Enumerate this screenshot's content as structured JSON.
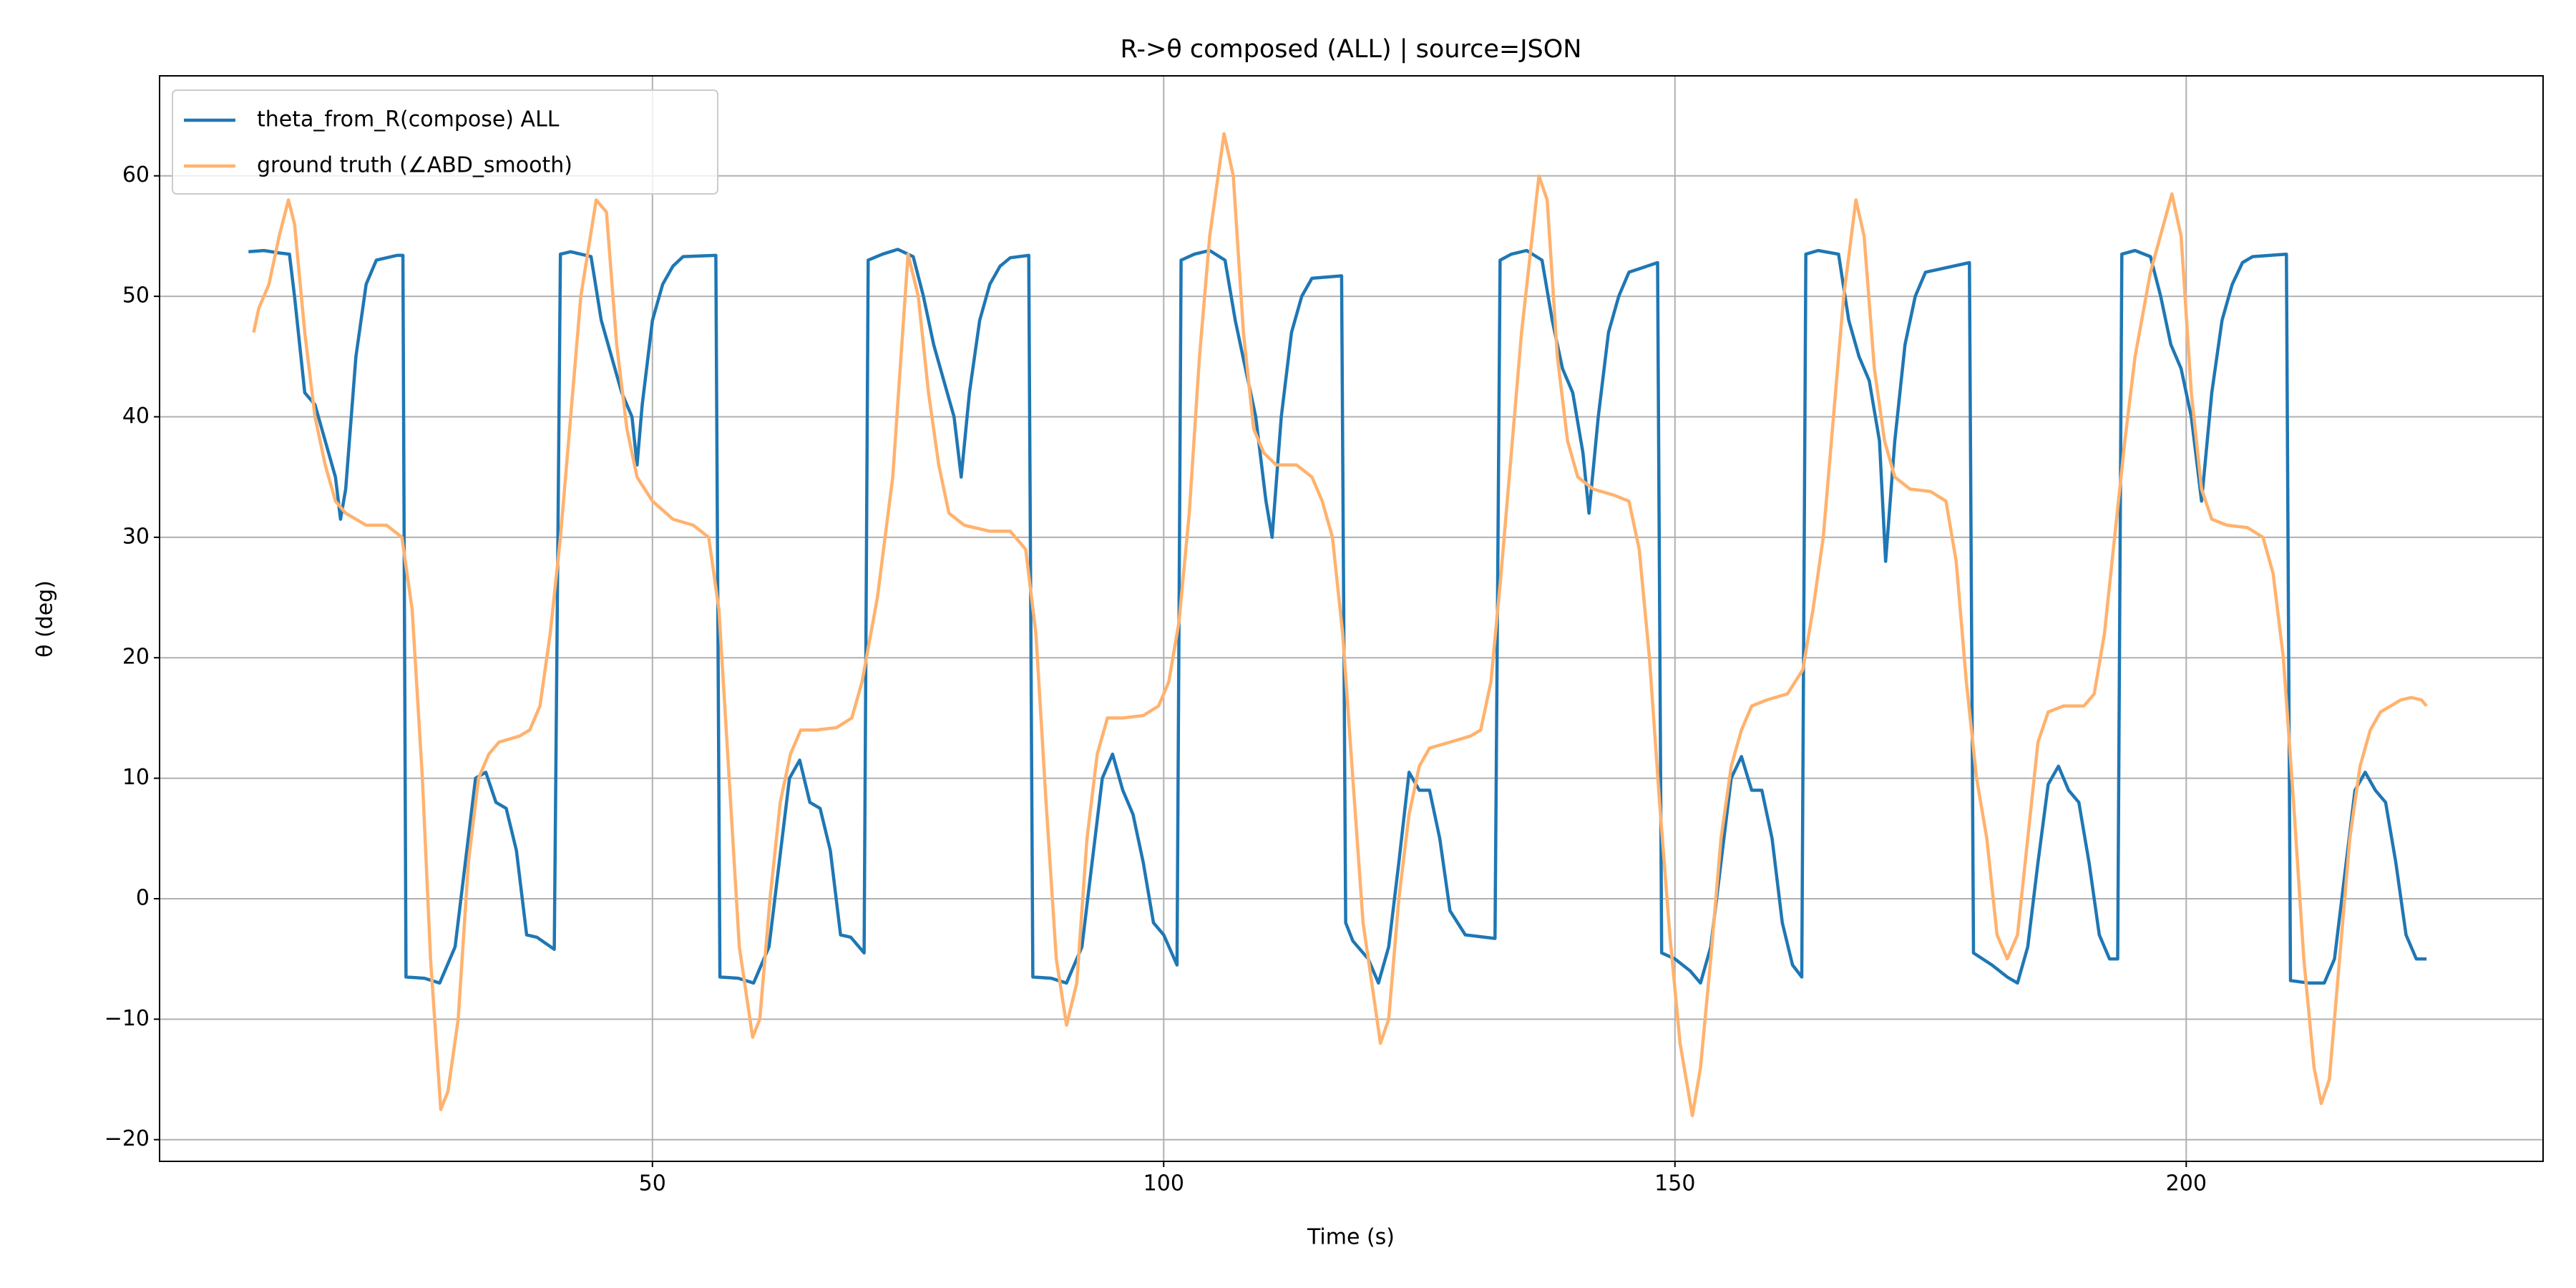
{
  "chart_data": {
    "type": "line",
    "title": "R->θ composed (ALL) | source=JSON",
    "x_label": "Time (s)",
    "y_label": "θ (deg)",
    "xlim": [
      1.8,
      234.9
    ],
    "ylim": [
      -21.8,
      68.3
    ],
    "xticks": [
      50,
      100,
      150,
      200
    ],
    "yticks": [
      {
        "value": -20,
        "label": "−20"
      },
      {
        "value": -10,
        "label": "−10"
      },
      0,
      10,
      20,
      30,
      40,
      50,
      60
    ],
    "grid": true,
    "legend": "upper left",
    "series": [
      {
        "name": "theta_from_R(compose) ALL",
        "color": "#1f77b4",
        "x": [
          10.5,
          12,
          13.5,
          14.5,
          15,
          16,
          17,
          18,
          19,
          19.5,
          20,
          21,
          22,
          23,
          25,
          25.6,
          25.9,
          27.7,
          29.2,
          30.7,
          31.7,
          32.7,
          33.7,
          34.7,
          35.7,
          36.7,
          37.7,
          38.7,
          40.4,
          41,
          42,
          44,
          45,
          46,
          47,
          48,
          48.5,
          49,
          50,
          51,
          52,
          53,
          56.2,
          56.6,
          58.4,
          59.9,
          61.4,
          62.4,
          63.4,
          64.4,
          65.4,
          66.4,
          67.4,
          68.4,
          69.4,
          70.7,
          71.1,
          72.5,
          74,
          75.5,
          76.5,
          77.5,
          78.5,
          79.5,
          80.2,
          81,
          82,
          83,
          84,
          85,
          86.8,
          87.2,
          89,
          90.5,
          92,
          93,
          94,
          95,
          96,
          97,
          98,
          99,
          100,
          101.3,
          101.7,
          103,
          104.5,
          106,
          107,
          108,
          109,
          110,
          110.6,
          111.5,
          112.5,
          113.5,
          114.5,
          117.4,
          117.8,
          118.5,
          120,
          121,
          122,
          123,
          124,
          125,
          126,
          127,
          128,
          129.5,
          132.4,
          132.9,
          134,
          135.5,
          137,
          138,
          139,
          140,
          141,
          141.6,
          142.5,
          143.5,
          144.5,
          145.5,
          148.3,
          148.7,
          150,
          151.5,
          152.5,
          153.5,
          154.5,
          155.5,
          156.5,
          157.5,
          158.5,
          159.5,
          160.5,
          161.5,
          162.4,
          162.8,
          164,
          166,
          167,
          168,
          169,
          170,
          170.6,
          171.5,
          172.5,
          173.5,
          174.5,
          178.8,
          179.2,
          181,
          182.5,
          183.5,
          184.5,
          185.5,
          186.5,
          187.5,
          188.5,
          189.5,
          190.5,
          191.5,
          192.5,
          193.3,
          193.7,
          195,
          196.5,
          197.5,
          198.5,
          199.5,
          200.5,
          201.5,
          202.5,
          203.5,
          204.5,
          205.5,
          206.5,
          209.8,
          210.2,
          212,
          213.5,
          214.5,
          215.5,
          216.5,
          217.5,
          218.5,
          219.5,
          220.5,
          221.5,
          222.5,
          223.5
        ],
        "values": [
          53.7,
          53.8,
          53.6,
          53.5,
          50,
          42,
          41,
          38,
          35,
          31.5,
          34,
          45,
          51,
          53,
          53.4,
          53.4,
          -6.5,
          -6.6,
          -7,
          -4,
          3,
          10,
          10.5,
          8,
          7.5,
          4,
          -3,
          -3.2,
          -4.2,
          53.5,
          53.7,
          53.3,
          48,
          45,
          42,
          40,
          36,
          41,
          48,
          51,
          52.5,
          53.3,
          53.4,
          -6.5,
          -6.6,
          -7,
          -4,
          3,
          10,
          11.5,
          8,
          7.5,
          4,
          -3,
          -3.2,
          -4.5,
          53,
          53.5,
          53.9,
          53.3,
          50,
          46,
          43,
          40,
          35,
          42,
          48,
          51,
          52.5,
          53.2,
          53.4,
          -6.5,
          -6.6,
          -7,
          -4,
          3,
          10,
          12,
          9,
          7,
          3,
          -2,
          -3,
          -5.5,
          53,
          53.5,
          53.8,
          53,
          48,
          44,
          40,
          33,
          30,
          40,
          47,
          50,
          51.5,
          51.7,
          -2,
          -3.5,
          -5,
          -7,
          -4,
          3,
          10.5,
          9,
          9,
          5,
          -1,
          -3,
          -3.3,
          53,
          53.5,
          53.8,
          53,
          48,
          44,
          42,
          37,
          32,
          40,
          47,
          50,
          52,
          52.8,
          -4.5,
          -5,
          -6,
          -7,
          -4,
          3,
          10,
          11.8,
          9,
          9,
          5,
          -2,
          -5.5,
          -6.5,
          53.5,
          53.8,
          53.5,
          48,
          45,
          43,
          38,
          28,
          38,
          46,
          50,
          52,
          52.8,
          -4.5,
          -5.5,
          -6.5,
          -7,
          -4,
          3,
          9.5,
          11,
          9,
          8,
          3,
          -3,
          -5,
          -5,
          53.5,
          53.8,
          53.3,
          50,
          46,
          44,
          40,
          33,
          42,
          48,
          51,
          52.8,
          53.3,
          53.5,
          -6.8,
          -7,
          -7,
          -5,
          2,
          9,
          10.5,
          9,
          8,
          3,
          -3,
          -5,
          -5
        ]
      },
      {
        "name": "ground truth (∠ABD_smooth)",
        "color": "#ffb26e",
        "x": [
          11,
          11.5,
          12.5,
          13.5,
          14.4,
          15,
          16,
          17,
          18,
          19,
          20,
          22,
          24,
          25.5,
          26.5,
          27.5,
          28.3,
          29.3,
          30,
          31,
          32,
          33,
          34,
          35,
          37,
          38,
          39,
          40,
          41,
          42,
          43,
          44.5,
          45.5,
          46.5,
          47.5,
          48.5,
          50,
          52,
          54,
          55.5,
          56.5,
          57.5,
          58.5,
          59.8,
          60.5,
          61.5,
          62.5,
          63.5,
          64.5,
          66,
          68,
          69.5,
          70.5,
          72,
          73.5,
          75,
          76,
          77,
          78,
          79,
          80.5,
          83,
          85,
          86.5,
          87.5,
          88.5,
          89.5,
          90.5,
          91.5,
          92.5,
          93.5,
          94.5,
          96,
          98,
          99.5,
          100.5,
          101.5,
          102.5,
          103.5,
          104.5,
          105.9,
          106.8,
          107.8,
          108.8,
          109.8,
          111,
          113,
          114.5,
          115.5,
          116.5,
          117.5,
          118.5,
          119.5,
          121.2,
          122,
          123,
          124,
          125,
          126,
          128,
          130,
          131,
          132,
          133,
          134,
          135,
          136.7,
          137.5,
          138.5,
          139.5,
          140.5,
          142,
          144,
          145.5,
          146.5,
          147.5,
          148.5,
          149.5,
          150.5,
          151.7,
          152.5,
          153.5,
          154.5,
          155.5,
          156.5,
          157.5,
          159,
          161,
          162.5,
          163.5,
          164.5,
          165.5,
          166.5,
          167.7,
          168.5,
          169.5,
          170.5,
          171.5,
          173,
          175,
          176.5,
          177.5,
          178.5,
          179.5,
          180.5,
          181.5,
          182.5,
          183.5,
          184.5,
          185.5,
          186.5,
          188,
          190,
          191,
          192,
          193,
          194,
          195,
          196.5,
          198.6,
          199.5,
          200.5,
          201.5,
          202.5,
          204,
          206,
          207.5,
          208.5,
          209.5,
          210.5,
          211.5,
          212.5,
          213.2,
          214,
          215,
          216,
          217,
          218,
          219,
          220,
          221,
          222,
          223,
          223.5
        ],
        "values": [
          47,
          49,
          51,
          55,
          58,
          56,
          47,
          40,
          36,
          33,
          32,
          31,
          31,
          30,
          24,
          10,
          -5,
          -17.5,
          -16,
          -10,
          3,
          10,
          12,
          13,
          13.5,
          14,
          16,
          22,
          30,
          40,
          50,
          58,
          57,
          46,
          39,
          35,
          33,
          31.5,
          31,
          30,
          24,
          10,
          -4,
          -11.5,
          -10,
          0,
          8,
          12,
          14,
          14,
          14.2,
          15,
          18,
          25,
          35,
          53.5,
          50,
          42,
          36,
          32,
          31,
          30.5,
          30.5,
          29,
          22,
          8,
          -5,
          -10.5,
          -7,
          5,
          12,
          15,
          15,
          15.2,
          16,
          18,
          23,
          32,
          45,
          55,
          63.5,
          60,
          47,
          39,
          37,
          36,
          36,
          35,
          33,
          30,
          22,
          10,
          -2,
          -12,
          -10,
          0,
          7,
          11,
          12.5,
          13,
          13.5,
          14,
          18,
          27,
          37,
          47,
          60,
          58,
          45,
          38,
          35,
          34,
          33.5,
          33,
          29,
          20,
          8,
          -3,
          -12,
          -18,
          -14,
          -5,
          5,
          11,
          14,
          16,
          16.5,
          17,
          19,
          24,
          30,
          40,
          50,
          58,
          55,
          44,
          38,
          35,
          34,
          33.8,
          33,
          28,
          18,
          10,
          5,
          -3,
          -5,
          -3,
          5,
          13,
          15.5,
          16,
          16,
          17,
          22,
          30,
          38,
          45,
          52,
          58.5,
          55,
          42,
          34,
          31.5,
          31,
          30.8,
          30,
          27,
          20,
          8,
          -5,
          -14,
          -17,
          -15,
          -5,
          5,
          11,
          14,
          15.5,
          16,
          16.5,
          16.7,
          16.5,
          16
        ]
      }
    ]
  }
}
